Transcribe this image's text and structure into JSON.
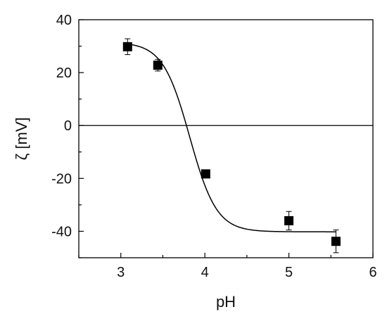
{
  "chart_data": {
    "type": "scatter",
    "title": "",
    "xlabel": "pH",
    "ylabel": "ζ [mV]",
    "xlim": [
      2.5,
      6
    ],
    "ylim": [
      -50,
      40
    ],
    "xticks": [
      3,
      4,
      5,
      6
    ],
    "xtick_labels": [
      "3",
      "4",
      "5",
      "6"
    ],
    "yticks": [
      -40,
      -20,
      0,
      20,
      40
    ],
    "ytick_labels": [
      "-40",
      "-20",
      "0",
      "20",
      "40"
    ],
    "grid": false,
    "legend": "none",
    "reference_line_y": 0,
    "points": [
      {
        "x": 3.08,
        "y": 29.8,
        "err": 3.0
      },
      {
        "x": 3.44,
        "y": 22.8,
        "err": 2.2
      },
      {
        "x": 4.01,
        "y": -18.3,
        "err": 1.5
      },
      {
        "x": 5.0,
        "y": -36.0,
        "err": 3.5
      },
      {
        "x": 5.56,
        "y": -43.8,
        "err": 4.3
      }
    ],
    "fit_curve": {
      "type": "sigmoid",
      "upper": 31.5,
      "lower": -40.2,
      "midpoint": 3.82,
      "slope": 0.16,
      "x_range": [
        3.08,
        5.56
      ]
    },
    "colors": {
      "marker": "#000000",
      "line": "#000000",
      "axis": "#000000"
    }
  }
}
